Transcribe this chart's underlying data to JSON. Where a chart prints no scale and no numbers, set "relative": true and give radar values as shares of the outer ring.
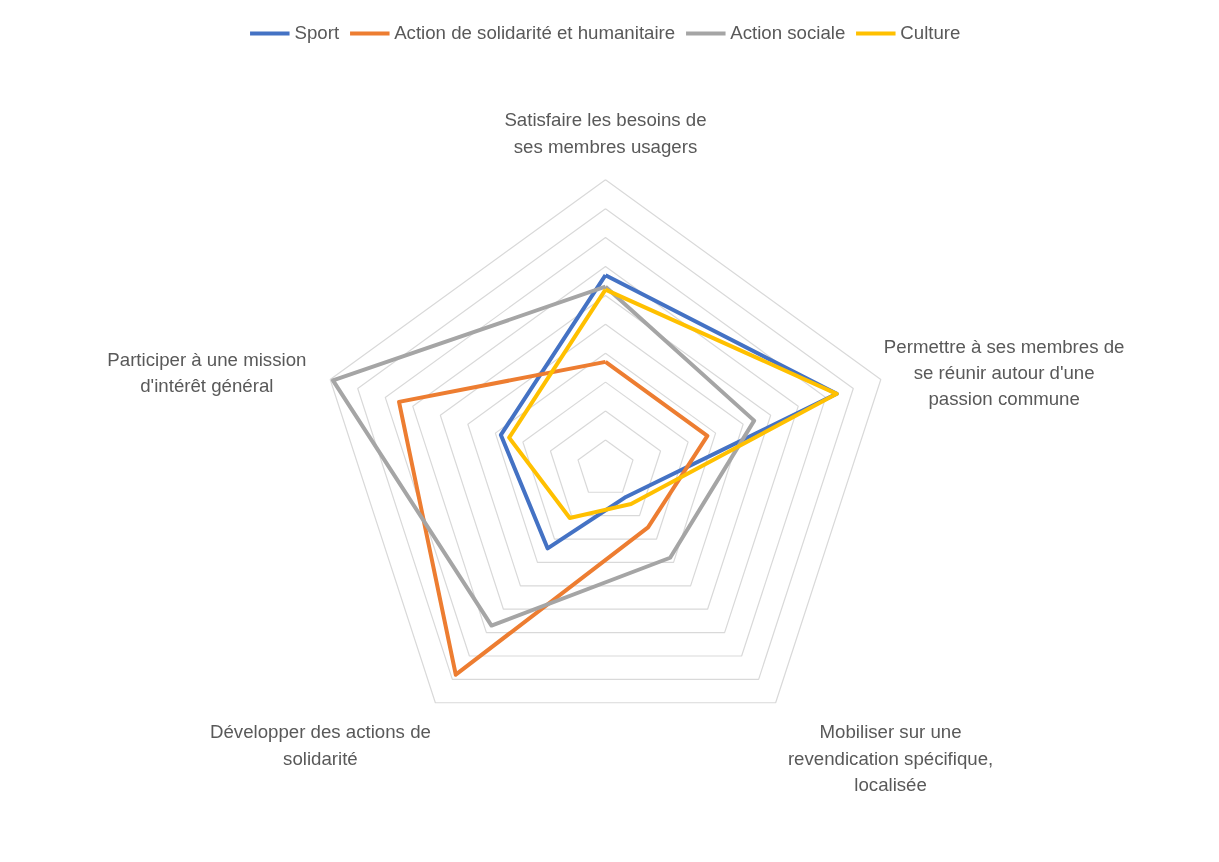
{
  "chart_data": {
    "type": "radar",
    "relative": true,
    "legend": "top",
    "categories": [
      "Satisfaire les besoins de ses membres usagers",
      "Permettre à ses membres de se réunir autour d'une passion commune",
      "Mobiliser sur une revendication spécifique, localisée",
      "Développer des actions de solidarité",
      "Participer à une mission d'intérêt général"
    ],
    "series": [
      {
        "name": "Sport",
        "color": "#4472c4",
        "values": [
          0.67,
          0.84,
          0.12,
          0.34,
          0.38
        ]
      },
      {
        "name": "Action de solidarité et humanitaire",
        "color": "#ed7d31",
        "values": [
          0.37,
          0.37,
          0.25,
          0.88,
          0.75
        ]
      },
      {
        "name": "Action sociale",
        "color": "#a5a5a5",
        "values": [
          0.63,
          0.54,
          0.38,
          0.67,
          0.99
        ]
      },
      {
        "name": "Culture",
        "color": "#ffc000",
        "values": [
          0.62,
          0.84,
          0.15,
          0.21,
          0.35
        ]
      }
    ]
  }
}
